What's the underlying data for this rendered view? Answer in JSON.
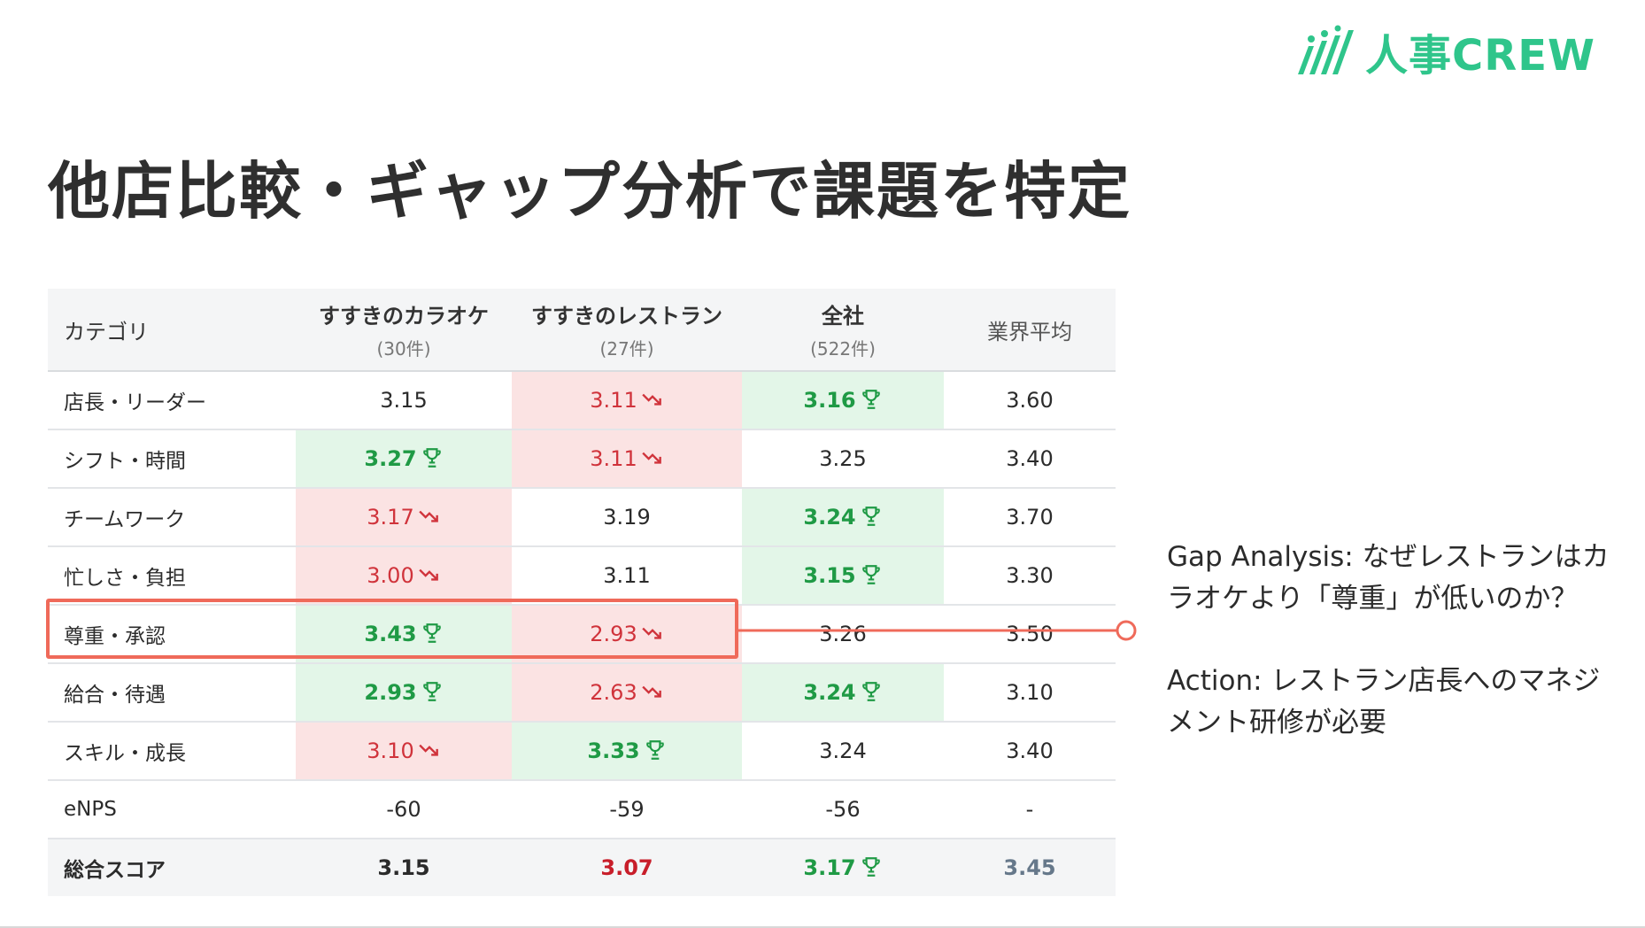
{
  "brand": {
    "name": "人事CREW",
    "color": "#2fc58b"
  },
  "title": "他店比較・ギャップ分析で課題を特定",
  "colors": {
    "good_bg": "#e3f6e8",
    "good_text": "#1f9a45",
    "bad_bg": "#fbe3e3",
    "bad_text": "#d0333b",
    "highlight": "#ef6a5a"
  },
  "icons": {
    "good": "trophy-icon",
    "bad": "trend-down-icon"
  },
  "table": {
    "headers": [
      {
        "label": "カテゴリ"
      },
      {
        "label": "すすきのカラオケ",
        "sub": "(30件)"
      },
      {
        "label": "すすきのレストラン",
        "sub": "(27件)"
      },
      {
        "label": "全社",
        "sub": "(522件)"
      },
      {
        "label": "業界平均"
      }
    ],
    "rows": [
      {
        "category": "店長・リーダー",
        "karaoke": "3.15",
        "restaurant": "3.11",
        "company": "3.16",
        "industry": "3.60"
      },
      {
        "category": "シフト・時間",
        "karaoke": "3.27",
        "restaurant": "3.11",
        "company": "3.25",
        "industry": "3.40"
      },
      {
        "category": "チームワーク",
        "karaoke": "3.17",
        "restaurant": "3.19",
        "company": "3.24",
        "industry": "3.70"
      },
      {
        "category": "忙しさ・負担",
        "karaoke": "3.00",
        "restaurant": "3.11",
        "company": "3.15",
        "industry": "3.30"
      },
      {
        "category": "尊重・承認",
        "karaoke": "3.43",
        "restaurant": "2.93",
        "company": "3.26",
        "industry": "3.50"
      },
      {
        "category": "給合・待遇",
        "karaoke": "2.93",
        "restaurant": "2.63",
        "company": "3.24",
        "industry": "3.10"
      },
      {
        "category": "スキル・成長",
        "karaoke": "3.10",
        "restaurant": "3.33",
        "company": "3.24",
        "industry": "3.40"
      },
      {
        "category": "eNPS",
        "karaoke": "-60",
        "restaurant": "-59",
        "company": "-56",
        "industry": "-"
      }
    ],
    "total": {
      "category": "総合スコア",
      "karaoke": "3.15",
      "restaurant": "3.07",
      "company": "3.17",
      "industry": "3.45"
    }
  },
  "notes": {
    "gap": "Gap Analysis: なぜレストランはカラオケより「尊重」が低いのか？",
    "action": "Action: レストラン店長へのマネジメント研修が必要"
  }
}
